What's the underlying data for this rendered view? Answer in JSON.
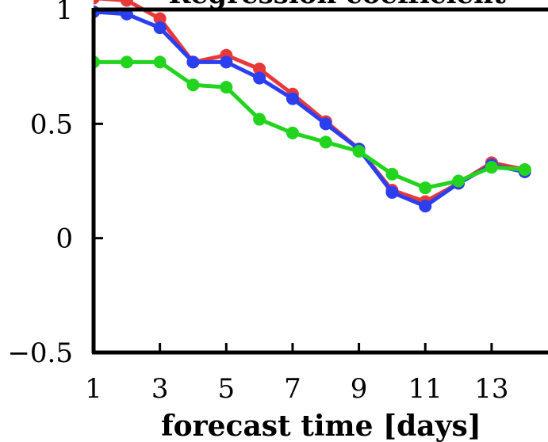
{
  "chart_data": {
    "type": "line",
    "title": "Regression coefficient",
    "xlabel": "forecast time [days]",
    "ylabel": "",
    "xlim": [
      1,
      14.7
    ],
    "ylim": [
      -0.5,
      1
    ],
    "x_ticks": [
      1,
      3,
      5,
      7,
      9,
      11,
      13
    ],
    "x_tick_labels": [
      "1",
      "3",
      "5",
      "7",
      "9",
      "11",
      "13"
    ],
    "y_ticks": [
      1,
      0.5,
      0,
      -0.5
    ],
    "y_tick_labels": [
      "1",
      "0.5",
      "0",
      "−0.5"
    ],
    "grid": false,
    "series": [
      {
        "color": "#e8393a",
        "x": [
          1,
          2,
          3,
          4,
          5,
          6,
          7,
          8,
          9,
          10,
          11,
          12,
          13,
          14
        ],
        "y": [
          1.05,
          1.04,
          0.96,
          0.77,
          0.8,
          0.74,
          0.63,
          0.51,
          0.39,
          0.21,
          0.16,
          0.24,
          0.33,
          0.3
        ]
      },
      {
        "color": "#2b3ff0",
        "x": [
          1,
          2,
          3,
          4,
          5,
          6,
          7,
          8,
          9,
          10,
          11,
          12,
          13,
          14
        ],
        "y": [
          0.99,
          0.98,
          0.92,
          0.77,
          0.77,
          0.7,
          0.61,
          0.5,
          0.39,
          0.2,
          0.14,
          0.24,
          0.32,
          0.29
        ]
      },
      {
        "color": "#22d41e",
        "x": [
          1,
          2,
          3,
          4,
          5,
          6,
          7,
          8,
          9,
          10,
          11,
          12,
          13,
          14
        ],
        "y": [
          0.77,
          0.77,
          0.77,
          0.67,
          0.66,
          0.52,
          0.46,
          0.42,
          0.38,
          0.28,
          0.22,
          0.25,
          0.31,
          0.3
        ]
      }
    ]
  }
}
